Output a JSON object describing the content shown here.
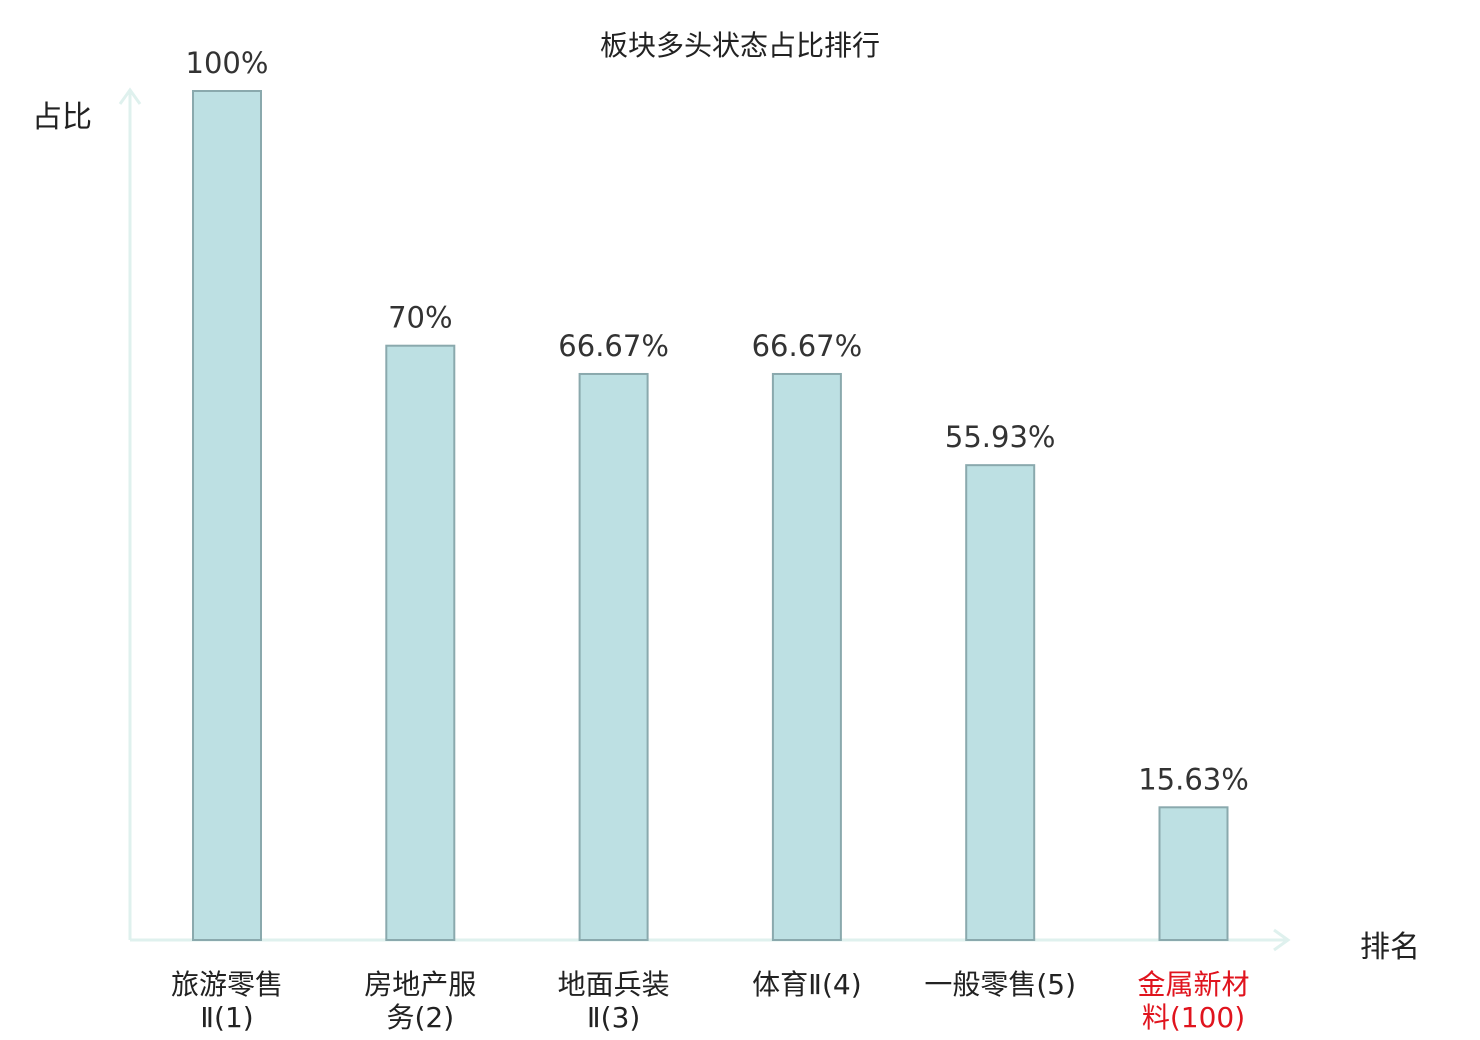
{
  "chart_data": {
    "type": "bar",
    "title": "板块多头状态占比排行",
    "ylabel": "占比",
    "xlabel": "排名",
    "categories": [
      [
        "旅游零售",
        "Ⅱ(1)"
      ],
      [
        "房地产服",
        "务(2)"
      ],
      [
        "地面兵装",
        "Ⅱ(3)"
      ],
      [
        "体育Ⅱ(4)"
      ],
      [
        "一般零售(5)"
      ],
      [
        "金属新材",
        "料(100)"
      ]
    ],
    "values": [
      100,
      70,
      66.67,
      66.67,
      55.93,
      15.63
    ],
    "value_labels": [
      "100%",
      "70%",
      "66.67%",
      "66.67%",
      "55.93%",
      "15.63%"
    ],
    "ylim": [
      0,
      100
    ],
    "highlight_index": 5,
    "colors": {
      "bar_fill": "#bde0e3",
      "bar_stroke": "#8aa9ad",
      "axis": "#dff1ee",
      "label": "#222222",
      "highlight_label": "#e0141e",
      "value_label": "#333333"
    }
  }
}
